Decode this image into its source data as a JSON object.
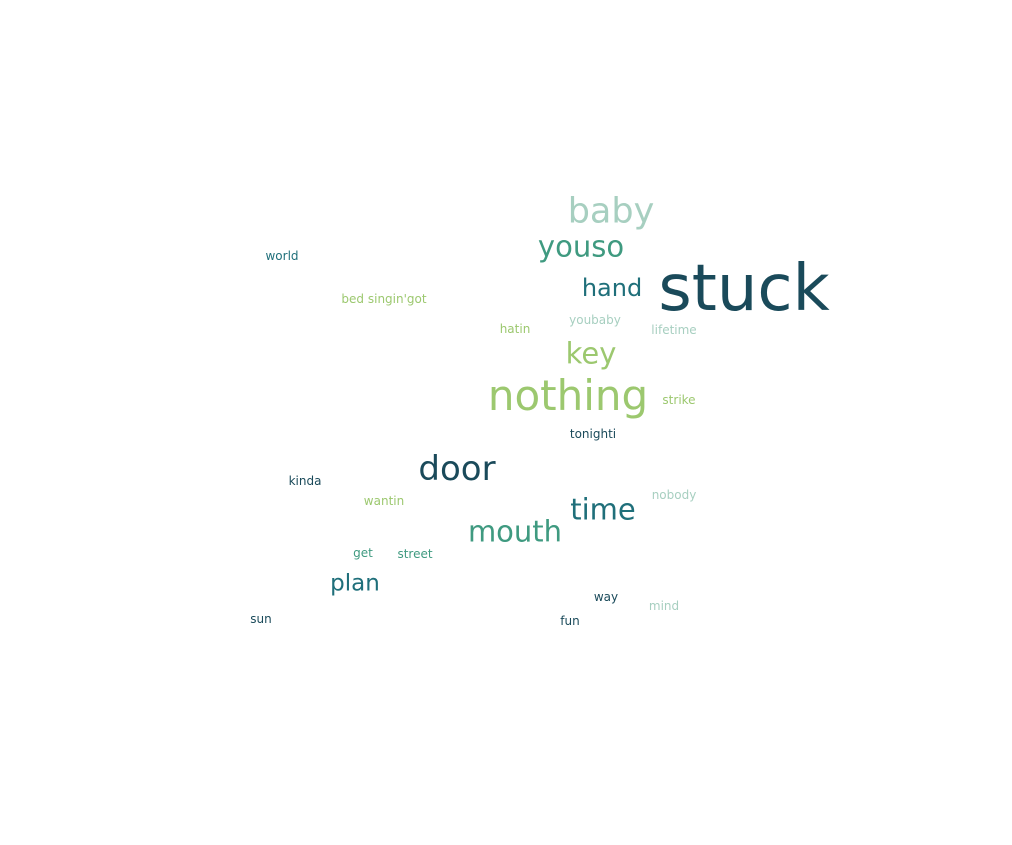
{
  "chart_data": {
    "type": "wordcloud",
    "colors": {
      "dark_teal": "#1a4a5a",
      "teal": "#1f6f7a",
      "green_teal": "#3f9a80",
      "light_green": "#9cc86f",
      "pale_teal": "#a7cfc0"
    },
    "words": [
      {
        "text": "stuck",
        "weight": 64,
        "color": "#1a4a5a"
      },
      {
        "text": "nothing",
        "weight": 42,
        "color": "#9cc86f"
      },
      {
        "text": "baby",
        "weight": 35,
        "color": "#a7cfc0"
      },
      {
        "text": "door",
        "weight": 34,
        "color": "#1a4a5a"
      },
      {
        "text": "youso",
        "weight": 29,
        "color": "#3f9a80"
      },
      {
        "text": "key",
        "weight": 29,
        "color": "#9cc86f"
      },
      {
        "text": "time",
        "weight": 29,
        "color": "#1f6f7a"
      },
      {
        "text": "mouth",
        "weight": 29,
        "color": "#3f9a80"
      },
      {
        "text": "hand",
        "weight": 24,
        "color": "#1f6f7a"
      },
      {
        "text": "plan",
        "weight": 23,
        "color": "#1f6f7a"
      },
      {
        "text": "world",
        "weight": 12,
        "color": "#1f6f7a"
      },
      {
        "text": "bed singin'got",
        "weight": 12,
        "color": "#9cc86f"
      },
      {
        "text": "hatin",
        "weight": 12,
        "color": "#9cc86f"
      },
      {
        "text": "youbaby",
        "weight": 12,
        "color": "#a7cfc0"
      },
      {
        "text": "lifetime",
        "weight": 12,
        "color": "#a7cfc0"
      },
      {
        "text": "strike",
        "weight": 12,
        "color": "#9cc86f"
      },
      {
        "text": "tonighti",
        "weight": 12,
        "color": "#1a4a5a"
      },
      {
        "text": "kinda",
        "weight": 12,
        "color": "#1a4a5a"
      },
      {
        "text": "wantin",
        "weight": 12,
        "color": "#9cc86f"
      },
      {
        "text": "nobody",
        "weight": 12,
        "color": "#a7cfc0"
      },
      {
        "text": "get",
        "weight": 12,
        "color": "#3f9a80"
      },
      {
        "text": "street",
        "weight": 12,
        "color": "#3f9a80"
      },
      {
        "text": "way",
        "weight": 12,
        "color": "#1a4a5a"
      },
      {
        "text": "mind",
        "weight": 12,
        "color": "#a7cfc0"
      },
      {
        "text": "sun",
        "weight": 12,
        "color": "#1a4a5a"
      },
      {
        "text": "fun",
        "weight": 12,
        "color": "#1a4a5a"
      }
    ]
  }
}
